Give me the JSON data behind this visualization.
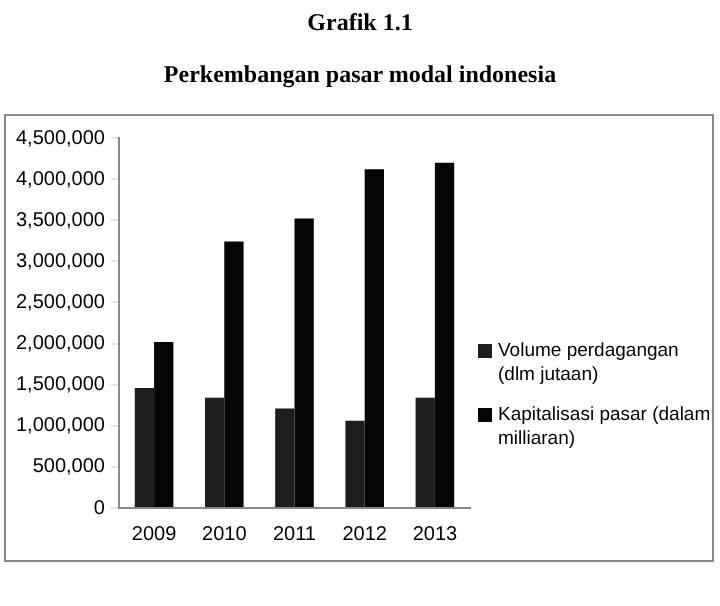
{
  "chart_data": {
    "type": "bar",
    "title": "Grafik 1.1",
    "subtitle": "Perkembangan pasar modal indonesia",
    "categories": [
      "2009",
      "2010",
      "2011",
      "2012",
      "2013"
    ],
    "series": [
      {
        "name": "Volume perdagangan (dlm jutaan)",
        "color": "#1e1e1e",
        "values": [
          1460000,
          1340000,
          1210000,
          1060000,
          1340000
        ]
      },
      {
        "name": "Kapitalisasi pasar (dalam milliaran)",
        "color": "#050505",
        "values": [
          2020000,
          3240000,
          3520000,
          4120000,
          4200000
        ]
      }
    ],
    "ylim": [
      0,
      4500000
    ],
    "yticks": [
      0,
      {
        "value": 500000,
        "label": "500,000"
      },
      {
        "value": 1000000,
        "label": "1,000,000"
      },
      {
        "value": 1500000,
        "label": "1,500,000"
      },
      {
        "value": 2000000,
        "label": "2,000,000"
      },
      {
        "value": 2500000,
        "label": "2,500,000"
      },
      {
        "value": 3000000,
        "label": "3,000,000"
      },
      {
        "value": 3500000,
        "label": "3,500,000"
      },
      {
        "value": 4000000,
        "label": "4,000,000"
      },
      {
        "value": 4500000,
        "label": "4,500,000"
      }
    ],
    "grid": false,
    "legend": "right"
  }
}
